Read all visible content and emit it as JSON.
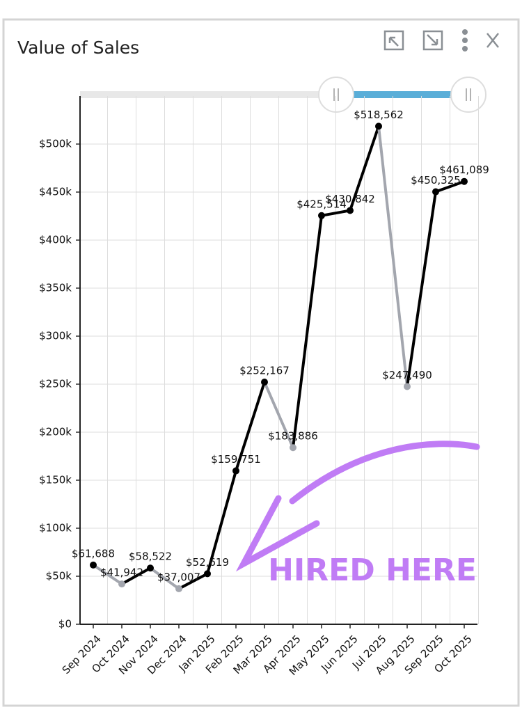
{
  "chart_data": {
    "type": "line",
    "title": "Value of Sales",
    "categories": [
      "Sep 2024",
      "Oct 2024",
      "Nov 2024",
      "Dec 2024",
      "Jan 2025",
      "Feb 2025",
      "Mar 2025",
      "Apr 2025",
      "May 2025",
      "Jun 2025",
      "Jul 2025",
      "Aug 2025",
      "Sep 2025",
      "Oct 2025"
    ],
    "values": [
      61688,
      41942,
      58522,
      37007,
      52619,
      159751,
      252167,
      183886,
      425514,
      430842,
      518562,
      247490,
      450325,
      461089
    ],
    "value_labels": [
      "$61,688",
      "$41,942",
      "$58,522",
      "$37,007",
      "$52,619",
      "$159,751",
      "$252,167",
      "$183,886",
      "$425,514",
      "$430,842",
      "$518,562",
      "$247,490",
      "$450,325",
      "$461,089"
    ],
    "up_color": "#000000",
    "down_color": "#a3a6ae",
    "ylim": [
      0,
      550000
    ],
    "yticks": [
      {
        "value": 0,
        "label": "$0"
      },
      {
        "value": 50000,
        "label": "$50k"
      },
      {
        "value": 100000,
        "label": "$100k"
      },
      {
        "value": 150000,
        "label": "$150k"
      },
      {
        "value": 200000,
        "label": "$200k"
      },
      {
        "value": 250000,
        "label": "$250k"
      },
      {
        "value": 300000,
        "label": "$300k"
      },
      {
        "value": 350000,
        "label": "$350k"
      },
      {
        "value": 400000,
        "label": "$400k"
      },
      {
        "value": 450000,
        "label": "$450k"
      },
      {
        "value": 500000,
        "label": "$500k"
      }
    ],
    "grid": true,
    "annotation": "HIRED HERE",
    "annotation_color": "#c07cf5"
  }
}
